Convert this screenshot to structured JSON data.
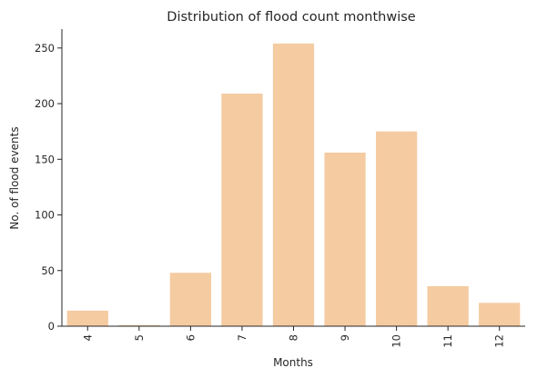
{
  "chart_data": {
    "type": "bar",
    "title": "Distribution of flood count monthwise",
    "xlabel": "Months",
    "ylabel": "No. of flood events",
    "categories": [
      "4",
      "5",
      "6",
      "7",
      "8",
      "9",
      "10",
      "11",
      "12"
    ],
    "values": [
      14,
      1,
      48,
      209,
      254,
      156,
      175,
      36,
      21
    ],
    "ylim": [
      0,
      267
    ],
    "yticks": [
      0,
      50,
      100,
      150,
      200,
      250
    ],
    "bar_color": "#f5cba1",
    "grid": false,
    "legend": "none"
  }
}
